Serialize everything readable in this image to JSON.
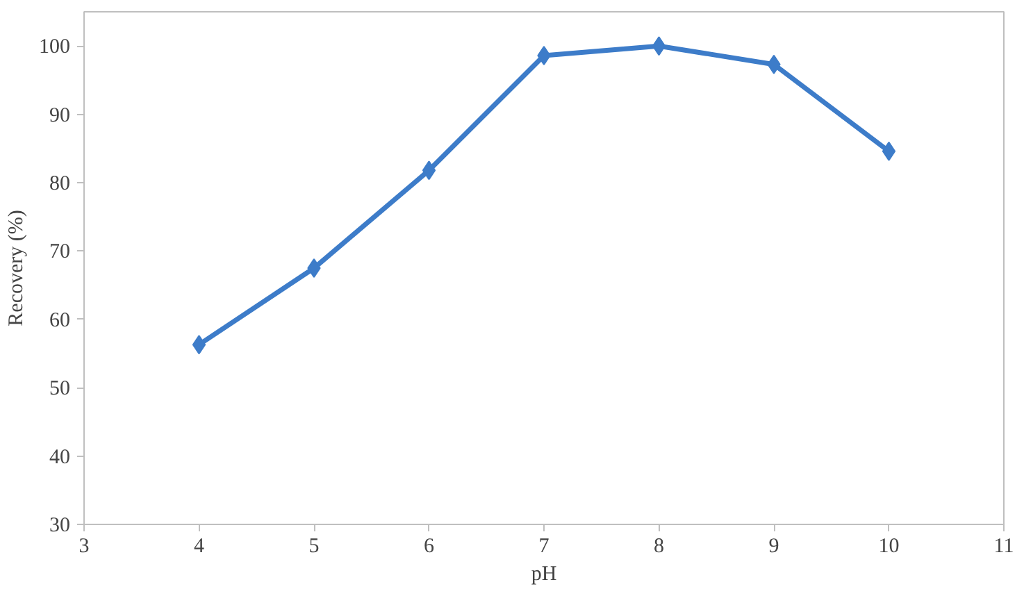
{
  "chart_data": {
    "type": "line",
    "xlabel": "pH",
    "ylabel": "Recovery (%)",
    "x": [
      4,
      5,
      6,
      7,
      8,
      9,
      10
    ],
    "series": [
      {
        "color": "#3d7cc9",
        "values": [
          56.3,
          67.5,
          81.8,
          98.6,
          100,
          97.3,
          84.6
        ]
      }
    ],
    "xlim": [
      3,
      11
    ],
    "xticks": [
      3,
      4,
      5,
      6,
      7,
      8,
      9,
      10,
      11
    ],
    "ylim": [
      30,
      105
    ],
    "yticks": [
      30,
      40,
      50,
      60,
      70,
      80,
      90,
      100
    ],
    "marker": "diamond",
    "line_style": "solid",
    "grid": false
  }
}
